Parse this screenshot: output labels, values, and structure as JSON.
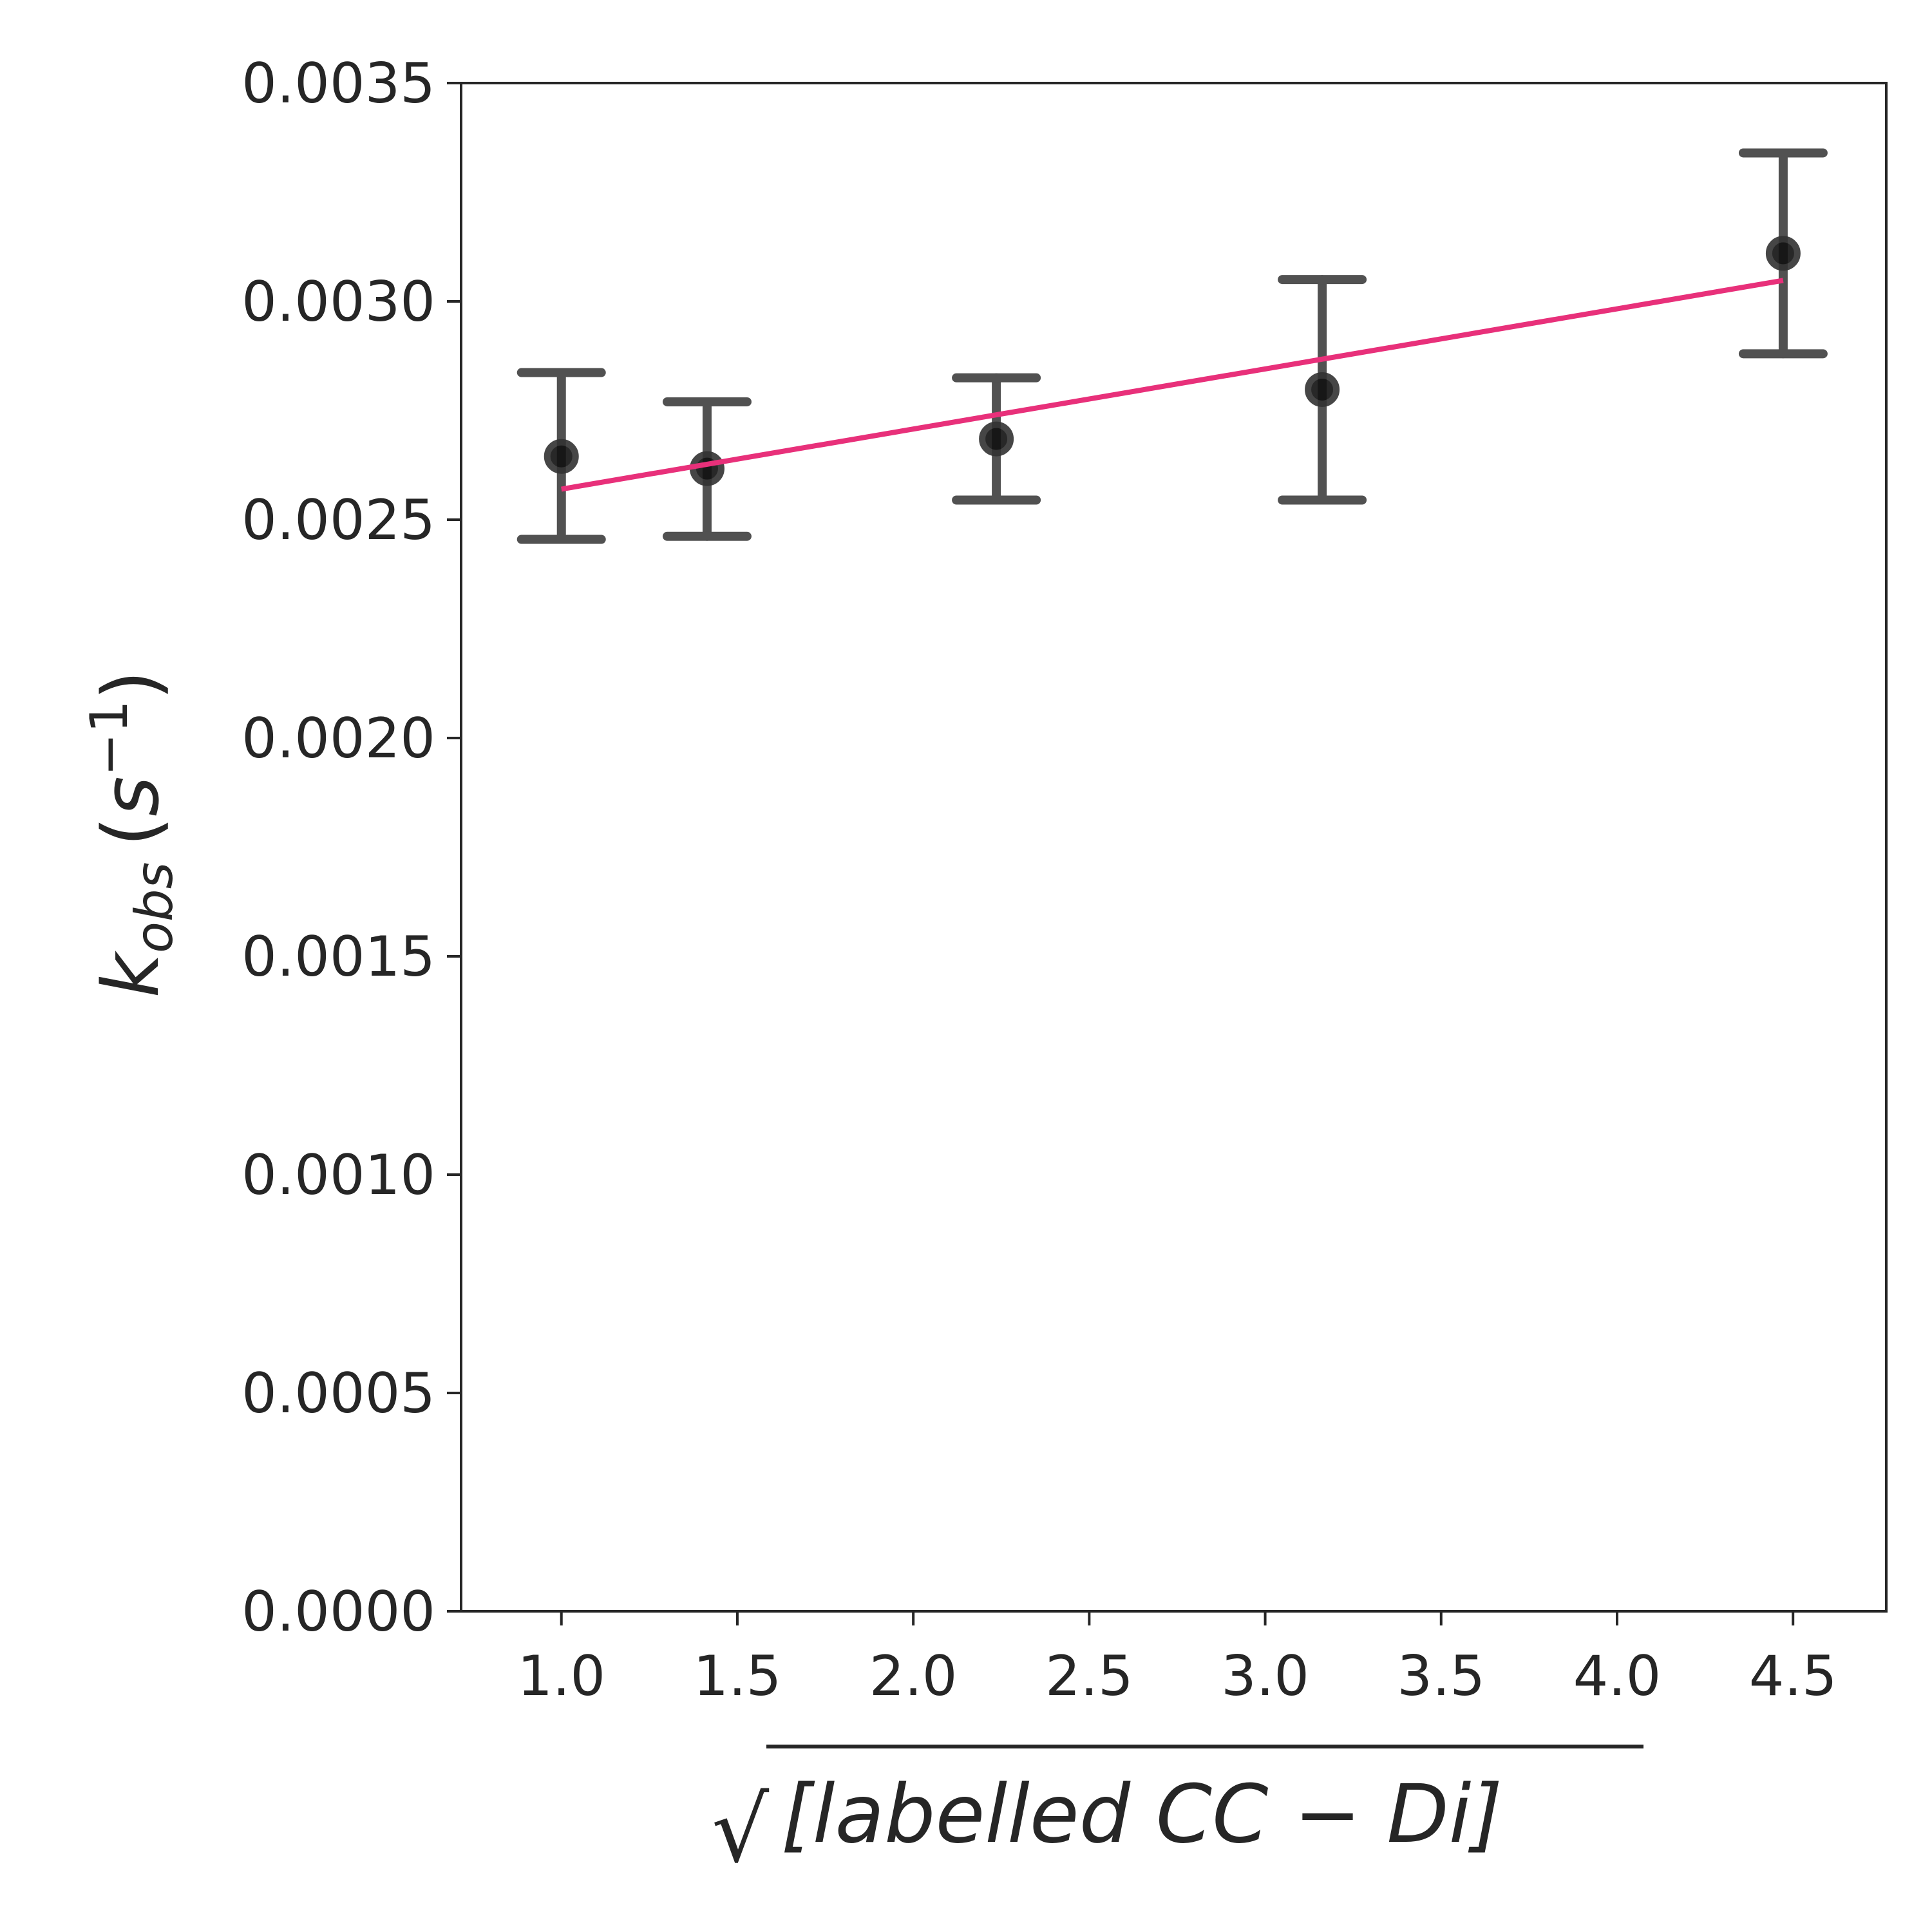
{
  "chart_data": {
    "type": "scatter",
    "title": "",
    "xlabel": {
      "radical": "√",
      "text": "[labelled CC − Di]"
    },
    "ylabel": {
      "base": "k",
      "subscript": "obs",
      "unit_open": "(",
      "unit_base": "s",
      "unit_exponent": "−1",
      "unit_close": ")"
    },
    "xlim": [
      0.715,
      4.765
    ],
    "ylim": [
      0.0,
      0.0035
    ],
    "x_ticks": [
      1.0,
      1.5,
      2.0,
      2.5,
      3.0,
      3.5,
      4.0,
      4.5
    ],
    "x_tick_labels": [
      "1.0",
      "1.5",
      "2.0",
      "2.5",
      "3.0",
      "3.5",
      "4.0",
      "4.5"
    ],
    "y_ticks": [
      0.0,
      0.0005,
      0.001,
      0.0015,
      0.002,
      0.0025,
      0.003,
      0.0035
    ],
    "y_tick_labels": [
      "0.0000",
      "0.0005",
      "0.0010",
      "0.0015",
      "0.0020",
      "0.0025",
      "0.0030",
      "0.0035"
    ],
    "grid": false,
    "series": [
      {
        "type": "errorbar",
        "color": "#333333",
        "points": [
          {
            "x": 1.0,
            "y": 0.002645,
            "yerr_low": 0.002455,
            "yerr_high": 0.002837
          },
          {
            "x": 1.414,
            "y": 0.002617,
            "yerr_low": 0.002462,
            "yerr_high": 0.00277
          },
          {
            "x": 2.236,
            "y": 0.002685,
            "yerr_low": 0.002545,
            "yerr_high": 0.002825
          },
          {
            "x": 3.162,
            "y": 0.002798,
            "yerr_low": 0.002545,
            "yerr_high": 0.00305
          },
          {
            "x": 4.472,
            "y": 0.00311,
            "yerr_low": 0.00288,
            "yerr_high": 0.00334
          }
        ]
      },
      {
        "type": "line",
        "color": "#e8307a",
        "x": [
          1.0,
          4.472
        ],
        "y": [
          0.00257,
          0.003048
        ]
      }
    ]
  }
}
